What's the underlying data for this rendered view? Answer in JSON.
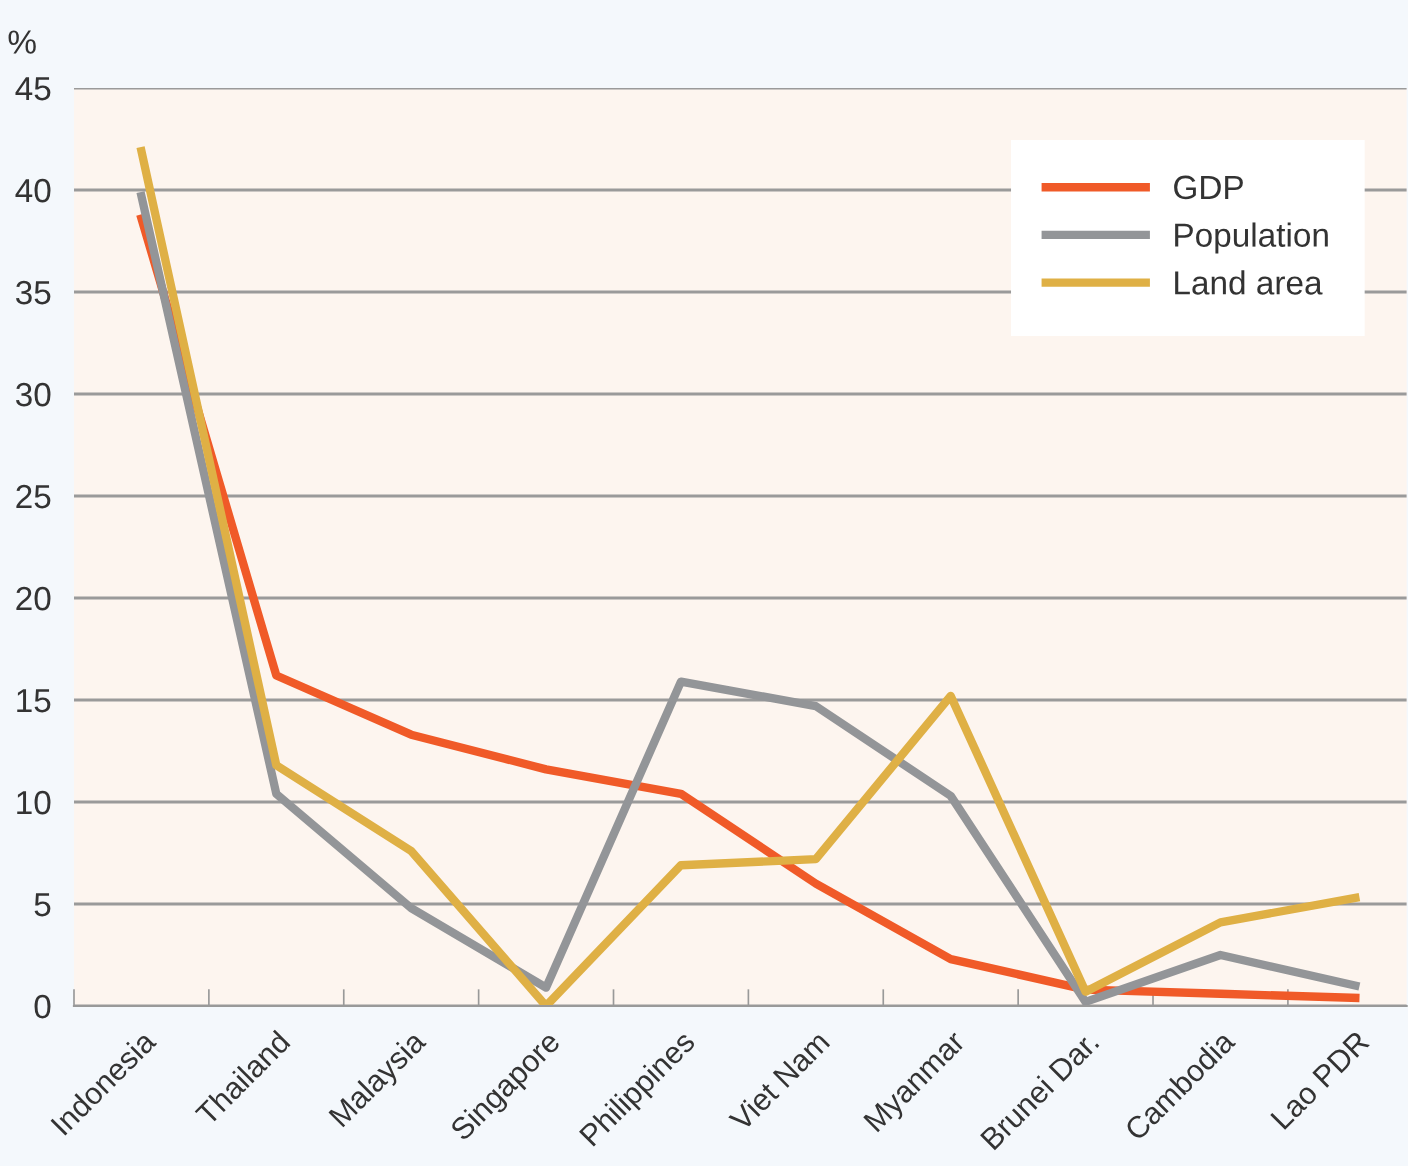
{
  "chart_data": {
    "type": "line",
    "ylabel": "%",
    "categories": [
      "Indonesia",
      "Thailand",
      "Malaysia",
      "Singapore",
      "Philippines",
      "Viet Nam",
      "Myanmar",
      "Brunei Dar.",
      "Cambodia",
      "Lao PDR"
    ],
    "series": [
      {
        "name": "GDP",
        "color": "#f05a28",
        "values": [
          38.6,
          16.2,
          13.3,
          11.6,
          10.4,
          6.0,
          2.3,
          0.8,
          0.6,
          0.4
        ]
      },
      {
        "name": "Population",
        "color": "#939598",
        "values": [
          39.7,
          10.4,
          4.8,
          0.9,
          15.9,
          14.7,
          10.3,
          0.2,
          2.5,
          1.0
        ]
      },
      {
        "name": "Land area",
        "color": "#dfb045",
        "values": [
          41.9,
          11.8,
          7.6,
          0,
          6.9,
          7.2,
          15.2,
          0.7,
          4.1,
          5.3
        ]
      }
    ],
    "ylim": [
      0,
      45
    ],
    "yticks": [
      0,
      5,
      10,
      15,
      20,
      25,
      30,
      35,
      40,
      45
    ],
    "grid": "y",
    "legend": "top right",
    "marker": "none",
    "line_style": "solid"
  }
}
